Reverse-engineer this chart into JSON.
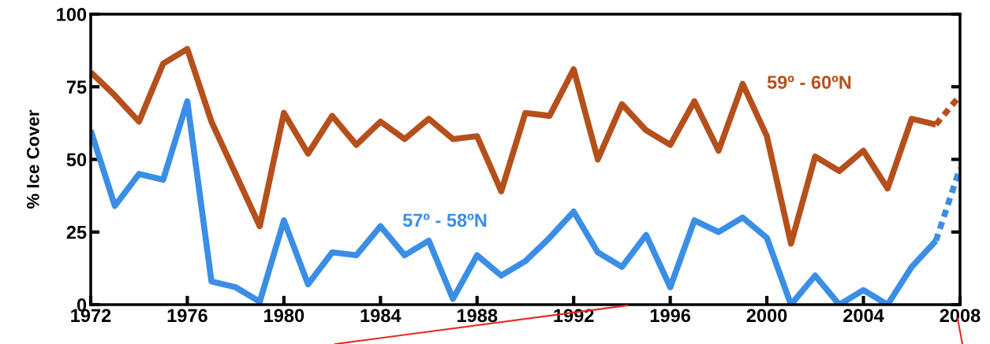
{
  "chart_data": {
    "type": "line",
    "ylabel": "% Ice Cover",
    "x": [
      1972,
      1973,
      1974,
      1975,
      1976,
      1977,
      1978,
      1979,
      1980,
      1981,
      1982,
      1983,
      1984,
      1985,
      1986,
      1987,
      1988,
      1989,
      1990,
      1991,
      1992,
      1993,
      1994,
      1995,
      1996,
      1997,
      1998,
      1999,
      2000,
      2001,
      2002,
      2003,
      2004,
      2005,
      2006,
      2007,
      2008
    ],
    "series": [
      {
        "name": "59º - 60ºN",
        "color": "#b5501c",
        "line_style": "solid",
        "values": [
          80,
          72,
          63,
          83,
          88,
          63,
          45,
          27,
          66,
          52,
          65,
          55,
          63,
          57,
          64,
          57,
          58,
          39,
          66,
          65,
          81,
          50,
          69,
          60,
          55,
          70,
          53,
          76,
          58,
          21,
          51,
          46,
          53,
          40,
          64,
          62,
          null
        ]
      },
      {
        "name": "57º - 58ºN",
        "color": "#3a8ee6",
        "line_style": "solid",
        "values": [
          60,
          34,
          45,
          43,
          70,
          8,
          6,
          1,
          29,
          7,
          18,
          17,
          27,
          17,
          22,
          2,
          17,
          10,
          15,
          23,
          32,
          18,
          13,
          24,
          6,
          29,
          25,
          30,
          23,
          0,
          10,
          0,
          5,
          0,
          13,
          22,
          null
        ]
      },
      {
        "color": "#b5501c",
        "line_style": "dashed",
        "values": [
          null,
          null,
          null,
          null,
          null,
          null,
          null,
          null,
          null,
          null,
          null,
          null,
          null,
          null,
          null,
          null,
          null,
          null,
          null,
          null,
          null,
          null,
          null,
          null,
          null,
          null,
          null,
          null,
          null,
          null,
          null,
          null,
          null,
          null,
          null,
          62,
          72
        ]
      },
      {
        "color": "#3a8ee6",
        "line_style": "dashed",
        "values": [
          null,
          null,
          null,
          null,
          null,
          null,
          null,
          null,
          null,
          null,
          null,
          null,
          null,
          null,
          null,
          null,
          null,
          null,
          null,
          null,
          null,
          null,
          null,
          null,
          null,
          null,
          null,
          null,
          null,
          null,
          null,
          null,
          null,
          null,
          null,
          22,
          47
        ]
      }
    ],
    "xlim": [
      1972,
      2008
    ],
    "xticks": [
      1972,
      1976,
      1980,
      1984,
      1988,
      1992,
      1996,
      2000,
      2004,
      2008
    ],
    "ylim": [
      0,
      100
    ],
    "yticks": [
      0,
      25,
      50,
      75,
      100
    ],
    "grid": false,
    "legend": false
  }
}
